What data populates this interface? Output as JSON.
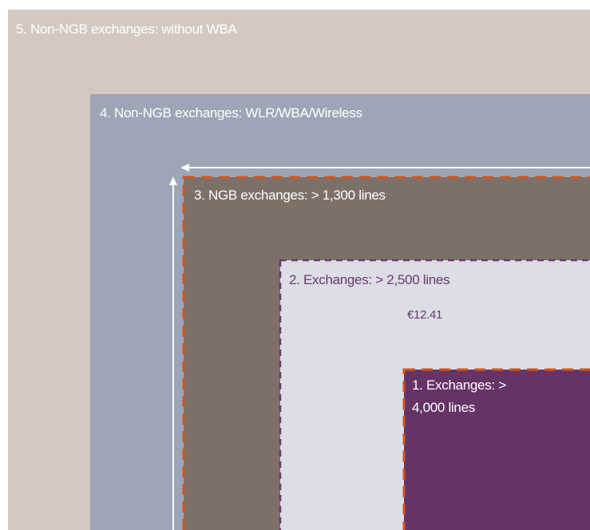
{
  "nodes": [
    {
      "label": "5. Non-NGB exchanges: without WBA"
    },
    {
      "label": "4. Non-NGB exchanges: WLR/WBA/Wireless"
    },
    {
      "label": "3. NGB exchanges: > 1,300 lines"
    },
    {
      "label": "2. Exchanges: > 2,500 lines",
      "price": "€12.41"
    },
    {
      "label_lines": [
        "1. Exchanges: >",
        "4,000 lines"
      ]
    }
  ]
}
